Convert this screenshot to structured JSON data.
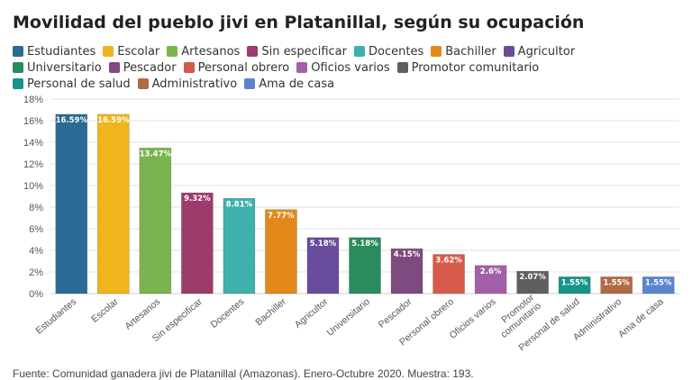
{
  "chart_data": {
    "type": "bar",
    "title": "Movilidad del pueblo jivi en Platanillal, según su ocupación",
    "xlabel": "",
    "ylabel": "",
    "ylim": [
      0,
      18
    ],
    "yticks": [
      "0%",
      "2%",
      "4%",
      "6%",
      "8%",
      "10%",
      "12%",
      "14%",
      "16%",
      "18%"
    ],
    "grid": true,
    "legend_position": "top",
    "categories": [
      "Estudiantes",
      "Escolar",
      "Artesanos",
      "Sin especificar",
      "Docentes",
      "Bachiller",
      "Agricultor",
      "Universitario",
      "Pescador",
      "Personal obrero",
      "Oficios varios",
      "Promotor comunitario",
      "Personal de salud",
      "Administrativo",
      "Ama de casa"
    ],
    "values": [
      16.59,
      16.59,
      13.47,
      9.32,
      8.81,
      7.77,
      5.18,
      5.18,
      4.15,
      3.62,
      2.6,
      2.07,
      1.55,
      1.55,
      1.55
    ],
    "value_labels": [
      "16.59%",
      "16.59%",
      "13.47%",
      "9.32%",
      "8.81%",
      "7.77%",
      "5.18%",
      "5.18%",
      "4.15%",
      "3.62%",
      "2.6%",
      "2.07%",
      "1.55%",
      "1.55%",
      "1.55%"
    ],
    "colors": [
      "#2a6b96",
      "#f0b41c",
      "#7ab44e",
      "#9c3b6c",
      "#3fb0ab",
      "#e3891b",
      "#6a4c9c",
      "#2a8c5c",
      "#7f4a7f",
      "#d55a4a",
      "#a35fa8",
      "#5f5f5f",
      "#169488",
      "#b06a45",
      "#5b84d0"
    ]
  },
  "footer": "Fuente: Comunidad  ganadera jivi de Platanillal (Amazonas). Enero-Octubre 2020. Muestra: 193."
}
